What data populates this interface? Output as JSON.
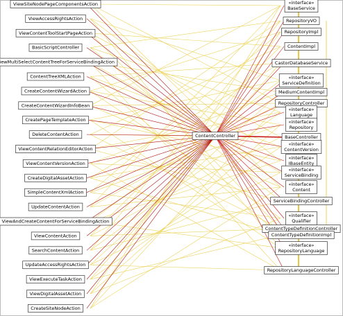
{
  "left_nodes": [
    "ViewSiteNodePageComponentsAction",
    "ViewAccessRightsAction",
    "ViewContentToolStartPageAction",
    "BasicScriptController",
    "ViewMultiSelectContentTreeForServiceBindingAction",
    "ContentTreeXMLAction",
    "CreateContentWizardAction",
    "CreateContentWizardInfoBean",
    "CreatePageTemplateAction",
    "DeleteContentAction",
    "ViewContentRelationEditorAction",
    "ViewContentVersionAction",
    "CreateDigitalAssetAction",
    "SimpleContentXmlAction",
    "UpdateContentAction",
    "ViewAndCreateContentForServiceBindingAction",
    "ViewContentAction",
    "SearchContentAction",
    "UpdateAccessRightsAction",
    "ViewExecuteTaskAction",
    "ViewDigitalAssetAction",
    "CreateSiteNodeAction"
  ],
  "center_node": "ContentController",
  "right_nodes": [
    {
      "stereotype": "«interface»",
      "name": "BaseService"
    },
    {
      "name": "RepositoryVO"
    },
    {
      "name": "RepositoryImpl"
    },
    {
      "name": "ContentImpl"
    },
    {
      "name": "CastorDatabaseService"
    },
    {
      "stereotype": "«interface»",
      "name": "ServiceDefinition"
    },
    {
      "name": "MediumContentImpl"
    },
    {
      "name": "RepositoryController"
    },
    {
      "stereotype": "«interface»",
      "name": "Language"
    },
    {
      "stereotype": "«interface»",
      "name": "Repository"
    },
    {
      "name": "BaseController"
    },
    {
      "stereotype": "«interface»",
      "name": "ContentVersion"
    },
    {
      "stereotype": "«interface»",
      "name": "IBaseEntity"
    },
    {
      "stereotype": "«interface»",
      "name": "ServiceBinding"
    },
    {
      "stereotype": "«interface»",
      "name": "Content"
    },
    {
      "name": "ServiceBindingController"
    },
    {
      "stereotype": "«interface»",
      "name": "Qualifier"
    },
    {
      "name": "ContentTypeDefinitionController"
    },
    {
      "name": "ContentTypeDefinitionImpl"
    },
    {
      "stereotype": "«interface»",
      "name": "RepositoryLanguage"
    },
    {
      "name": "RepositoryLanguageController"
    }
  ]
}
